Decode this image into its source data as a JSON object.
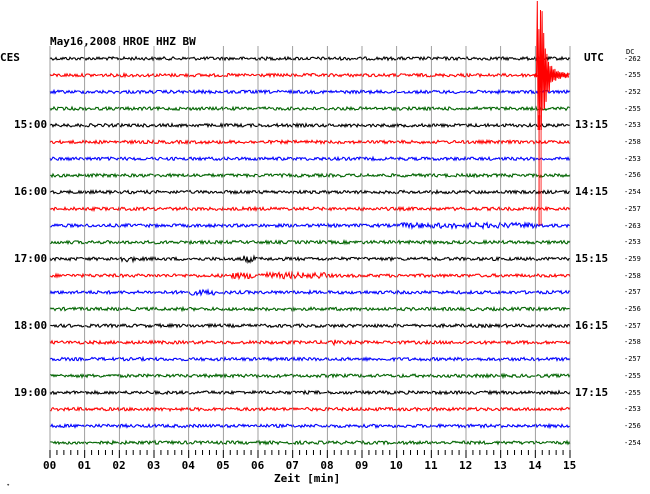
{
  "header": {
    "title": "May16,2008   HROE HHZ BW",
    "left_tz": "CES",
    "right_tz": "UTC",
    "dc_label": "DC"
  },
  "footer": {
    "corner_mark": "˖"
  },
  "chart_data": {
    "type": "line",
    "title": "May16,2008   HROE HHZ BW",
    "xlabel": "Zeit [min]",
    "x_ticks": [
      "00",
      "01",
      "02",
      "03",
      "04",
      "05",
      "06",
      "07",
      "08",
      "09",
      "10",
      "11",
      "12",
      "13",
      "14",
      "15"
    ],
    "xlim": [
      0,
      15
    ],
    "grid": true,
    "series_colors": [
      "#000000",
      "#ff0000",
      "#0000ff",
      "#006400"
    ],
    "left_time_labels": [
      {
        "label": "15:00",
        "trace": 4
      },
      {
        "label": "16:00",
        "trace": 8
      },
      {
        "label": "17:00",
        "trace": 12
      },
      {
        "label": "18:00",
        "trace": 16
      },
      {
        "label": "19:00",
        "trace": 20
      }
    ],
    "right_time_labels": [
      {
        "label": "13:15",
        "trace": 4
      },
      {
        "label": "14:15",
        "trace": 8
      },
      {
        "label": "15:15",
        "trace": 12
      },
      {
        "label": "16:15",
        "trace": 16
      },
      {
        "label": "17:15",
        "trace": 20
      }
    ],
    "dc_offsets": [
      "-262",
      "-255",
      "-252",
      "-255",
      "-253",
      "-258",
      "-253",
      "-256",
      "-254",
      "-257",
      "-263",
      "-253",
      "-259",
      "-258",
      "-257",
      "-256",
      "-257",
      "-258",
      "-257",
      "-255",
      "-255",
      "-253",
      "-256",
      "-254"
    ],
    "events": [
      {
        "trace": 1,
        "minute": 14.05,
        "label": "large earthquake arrival"
      }
    ]
  }
}
